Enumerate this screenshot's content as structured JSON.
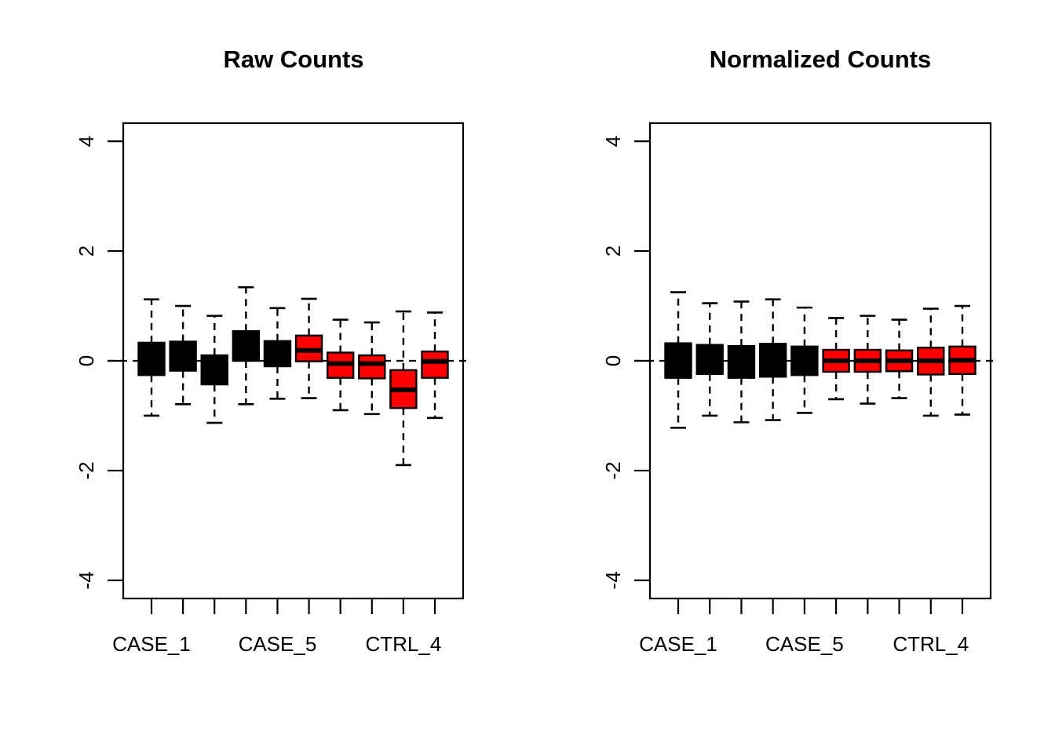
{
  "figure": {
    "background": "#ffffff",
    "axis_color": "#000000",
    "case_fill": "#000000",
    "ctrl_fill": "#ff0000"
  },
  "chart_data": [
    {
      "type": "boxplot",
      "title": "Raw Counts",
      "xlabel": "",
      "ylabel": "",
      "ylim": [
        -4.33,
        4.33
      ],
      "grid": false,
      "legend": null,
      "reference_line": {
        "y": 0,
        "style": "dashed",
        "color": "#000000"
      },
      "y_ticks": [
        {
          "value": 4,
          "label": "4"
        },
        {
          "value": 2,
          "label": "2"
        },
        {
          "value": 0,
          "label": "0"
        },
        {
          "value": -2,
          "label": "-2"
        },
        {
          "value": -4,
          "label": "-4"
        }
      ],
      "x_tick_count": 10,
      "x_tick_labels": [
        {
          "position": 1,
          "label": "CASE_1"
        },
        {
          "position": 5,
          "label": "CASE_5"
        },
        {
          "position": 9,
          "label": "CTRL_4"
        }
      ],
      "boxes": [
        {
          "position": 1,
          "color": "#000000",
          "low": -1.0,
          "q1": -0.26,
          "median": 0.04,
          "q3": 0.33,
          "high": 1.12
        },
        {
          "position": 2,
          "color": "#000000",
          "low": -0.79,
          "q1": -0.18,
          "median": 0.08,
          "q3": 0.35,
          "high": 1.0
        },
        {
          "position": 3,
          "color": "#000000",
          "low": -1.13,
          "q1": -0.43,
          "median": -0.16,
          "q3": 0.1,
          "high": 0.82
        },
        {
          "position": 4,
          "color": "#000000",
          "low": -0.79,
          "q1": 0.0,
          "median": 0.27,
          "q3": 0.54,
          "high": 1.34
        },
        {
          "position": 5,
          "color": "#000000",
          "low": -0.69,
          "q1": -0.1,
          "median": 0.13,
          "q3": 0.36,
          "high": 0.96
        },
        {
          "position": 6,
          "color": "#ff0000",
          "low": -0.68,
          "q1": -0.01,
          "median": 0.19,
          "q3": 0.46,
          "high": 1.13
        },
        {
          "position": 7,
          "color": "#ff0000",
          "low": -0.9,
          "q1": -0.31,
          "median": -0.05,
          "q3": 0.15,
          "high": 0.75
        },
        {
          "position": 8,
          "color": "#ff0000",
          "low": -0.97,
          "q1": -0.32,
          "median": -0.05,
          "q3": 0.1,
          "high": 0.7
        },
        {
          "position": 9,
          "color": "#ff0000",
          "low": -1.9,
          "q1": -0.86,
          "median": -0.53,
          "q3": -0.17,
          "high": 0.9
        },
        {
          "position": 10,
          "color": "#ff0000",
          "low": -1.04,
          "q1": -0.31,
          "median": -0.01,
          "q3": 0.17,
          "high": 0.88
        }
      ]
    },
    {
      "type": "boxplot",
      "title": "Normalized Counts",
      "xlabel": "",
      "ylabel": "",
      "ylim": [
        -4.33,
        4.33
      ],
      "grid": false,
      "legend": null,
      "reference_line": {
        "y": 0,
        "style": "dashed",
        "color": "#000000"
      },
      "y_ticks": [
        {
          "value": 4,
          "label": "4"
        },
        {
          "value": 2,
          "label": "2"
        },
        {
          "value": 0,
          "label": "0"
        },
        {
          "value": -2,
          "label": "-2"
        },
        {
          "value": -4,
          "label": "-4"
        }
      ],
      "x_tick_count": 10,
      "x_tick_labels": [
        {
          "position": 1,
          "label": "CASE_1"
        },
        {
          "position": 5,
          "label": "CASE_5"
        },
        {
          "position": 9,
          "label": "CTRL_4"
        }
      ],
      "boxes": [
        {
          "position": 1,
          "color": "#000000",
          "low": -1.22,
          "q1": -0.31,
          "median": 0.02,
          "q3": 0.32,
          "high": 1.25
        },
        {
          "position": 2,
          "color": "#000000",
          "low": -1.0,
          "q1": -0.24,
          "median": 0.03,
          "q3": 0.29,
          "high": 1.05
        },
        {
          "position": 3,
          "color": "#000000",
          "low": -1.12,
          "q1": -0.31,
          "median": -0.01,
          "q3": 0.27,
          "high": 1.08
        },
        {
          "position": 4,
          "color": "#000000",
          "low": -1.08,
          "q1": -0.29,
          "median": 0.01,
          "q3": 0.31,
          "high": 1.12
        },
        {
          "position": 5,
          "color": "#000000",
          "low": -0.95,
          "q1": -0.26,
          "median": 0.0,
          "q3": 0.26,
          "high": 0.97
        },
        {
          "position": 6,
          "color": "#ff0000",
          "low": -0.7,
          "q1": -0.2,
          "median": 0.0,
          "q3": 0.2,
          "high": 0.78
        },
        {
          "position": 7,
          "color": "#ff0000",
          "low": -0.78,
          "q1": -0.2,
          "median": 0.0,
          "q3": 0.2,
          "high": 0.82
        },
        {
          "position": 8,
          "color": "#ff0000",
          "low": -0.68,
          "q1": -0.19,
          "median": 0.0,
          "q3": 0.19,
          "high": 0.75
        },
        {
          "position": 9,
          "color": "#ff0000",
          "low": -1.0,
          "q1": -0.25,
          "median": 0.0,
          "q3": 0.24,
          "high": 0.95
        },
        {
          "position": 10,
          "color": "#ff0000",
          "low": -0.98,
          "q1": -0.24,
          "median": 0.01,
          "q3": 0.26,
          "high": 1.0
        }
      ]
    }
  ]
}
